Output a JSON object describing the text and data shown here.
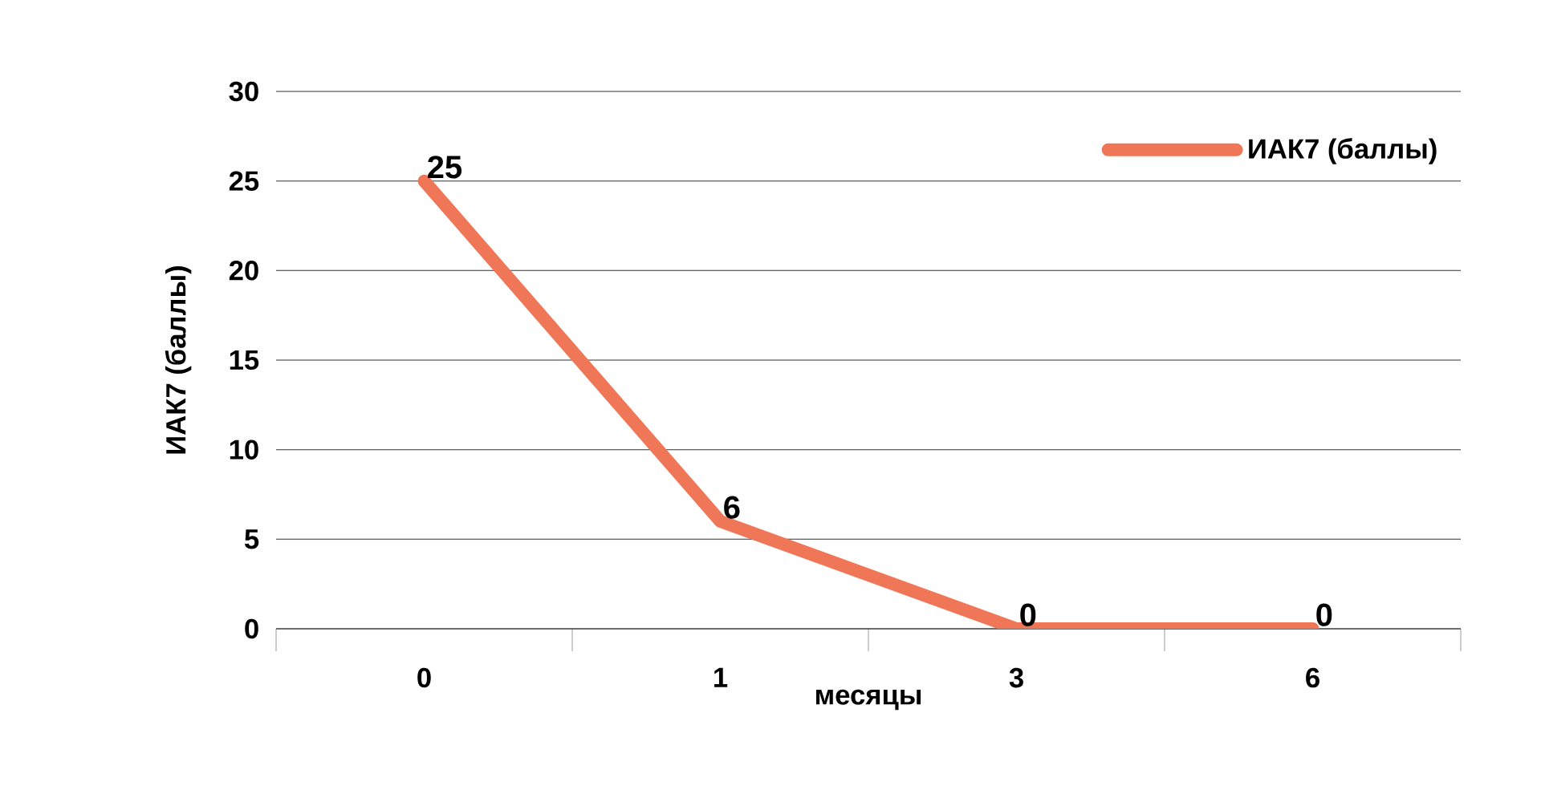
{
  "chart_data": {
    "type": "line",
    "xlabel": "месяцы",
    "ylabel": "ИАК7 (баллы)",
    "categories": [
      "0",
      "1",
      "3",
      "6"
    ],
    "series": [
      {
        "name": "ИАК7 (баллы)",
        "color": "#ef7757",
        "values": [
          25,
          6,
          0,
          0
        ]
      }
    ],
    "ylim": [
      0,
      30
    ],
    "yticks": [
      0,
      5,
      10,
      15,
      20,
      25,
      30
    ],
    "grid": "y",
    "legend": "top right",
    "data_labels": true,
    "marker": "none",
    "line_style": "solid"
  }
}
